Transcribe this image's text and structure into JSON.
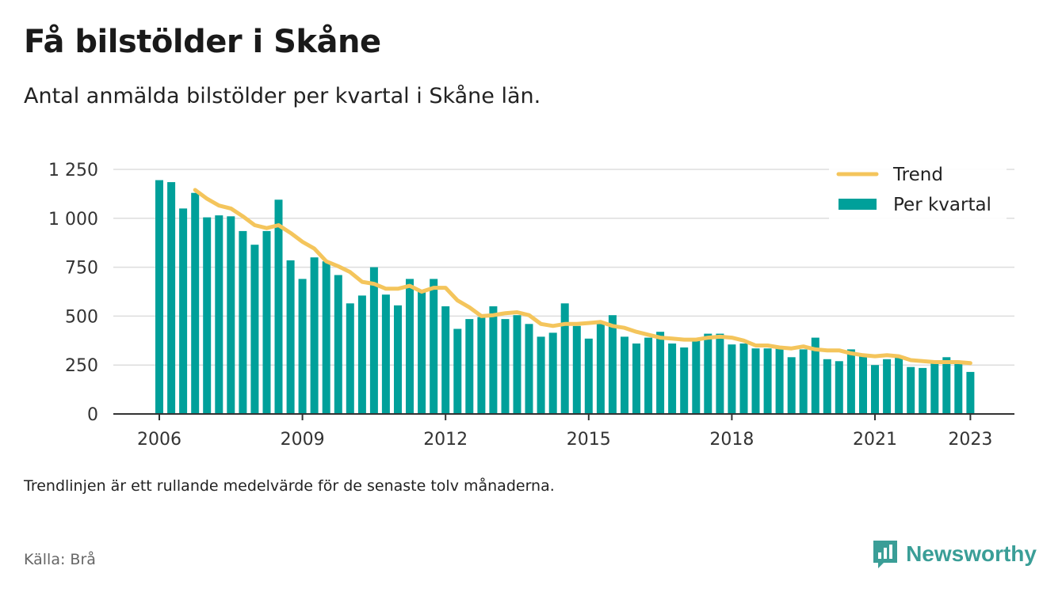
{
  "title": "Få bilstölder i Skåne",
  "subtitle": "Antal anmälda bilstölder per kvartal i Skåne län.",
  "note": "Trendlinjen är ett rullande medelvärde för de senaste tolv månaderna.",
  "source": "Källa: Brå",
  "brand": "Newsworthy",
  "colors": {
    "bar": "#00a09a",
    "trend": "#f4c55c",
    "grid": "#dddddd",
    "axis": "#333333",
    "brand": "#3a9e97"
  },
  "chart_data": {
    "type": "bar",
    "title": "",
    "xlabel": "",
    "ylabel": "",
    "ylim": [
      0,
      1250
    ],
    "yticks": [
      0,
      250,
      500,
      750,
      1000,
      1250
    ],
    "ytick_labels": [
      "0",
      "250",
      "500",
      "750",
      "1 000",
      "1 250"
    ],
    "xtick_labels": [
      "2006",
      "2009",
      "2012",
      "2015",
      "2018",
      "2021",
      "2023"
    ],
    "grid": true,
    "legend_position": "top-right",
    "categories": [
      "2006 Q1",
      "2006 Q2",
      "2006 Q3",
      "2006 Q4",
      "2007 Q1",
      "2007 Q2",
      "2007 Q3",
      "2007 Q4",
      "2008 Q1",
      "2008 Q2",
      "2008 Q3",
      "2008 Q4",
      "2009 Q1",
      "2009 Q2",
      "2009 Q3",
      "2009 Q4",
      "2010 Q1",
      "2010 Q2",
      "2010 Q3",
      "2010 Q4",
      "2011 Q1",
      "2011 Q2",
      "2011 Q3",
      "2011 Q4",
      "2012 Q1",
      "2012 Q2",
      "2012 Q3",
      "2012 Q4",
      "2013 Q1",
      "2013 Q2",
      "2013 Q3",
      "2013 Q4",
      "2014 Q1",
      "2014 Q2",
      "2014 Q3",
      "2014 Q4",
      "2015 Q1",
      "2015 Q2",
      "2015 Q3",
      "2015 Q4",
      "2016 Q1",
      "2016 Q2",
      "2016 Q3",
      "2016 Q4",
      "2017 Q1",
      "2017 Q2",
      "2017 Q3",
      "2017 Q4",
      "2018 Q1",
      "2018 Q2",
      "2018 Q3",
      "2018 Q4",
      "2019 Q1",
      "2019 Q2",
      "2019 Q3",
      "2019 Q4",
      "2020 Q1",
      "2020 Q2",
      "2020 Q3",
      "2020 Q4",
      "2021 Q1",
      "2021 Q2",
      "2021 Q3",
      "2021 Q4",
      "2022 Q1",
      "2022 Q2",
      "2022 Q3",
      "2022 Q4",
      "2023 Q1"
    ],
    "series": [
      {
        "name": "Per kvartal",
        "type": "bar",
        "values": [
          1195,
          1185,
          1050,
          1130,
          1005,
          1015,
          1010,
          935,
          865,
          935,
          1095,
          785,
          690,
          800,
          780,
          710,
          565,
          605,
          750,
          610,
          555,
          690,
          625,
          690,
          550,
          435,
          485,
          495,
          550,
          485,
          505,
          460,
          395,
          415,
          565,
          450,
          385,
          460,
          505,
          395,
          360,
          390,
          420,
          360,
          340,
          375,
          410,
          410,
          355,
          360,
          335,
          335,
          340,
          290,
          330,
          390,
          280,
          270,
          330,
          300,
          250,
          280,
          295,
          240,
          235,
          265,
          290,
          255,
          215
        ]
      },
      {
        "name": "Trend",
        "type": "line",
        "values": [
          null,
          null,
          null,
          1145,
          1100,
          1065,
          1050,
          1010,
          965,
          950,
          965,
          925,
          880,
          845,
          780,
          755,
          725,
          675,
          665,
          640,
          640,
          655,
          625,
          645,
          645,
          580,
          545,
          500,
          505,
          515,
          520,
          505,
          460,
          450,
          460,
          460,
          465,
          470,
          450,
          440,
          420,
          405,
          390,
          385,
          380,
          380,
          390,
          395,
          390,
          375,
          350,
          350,
          340,
          335,
          345,
          330,
          325,
          325,
          310,
          300,
          295,
          300,
          295,
          275,
          270,
          265,
          265,
          265,
          260
        ]
      }
    ]
  }
}
